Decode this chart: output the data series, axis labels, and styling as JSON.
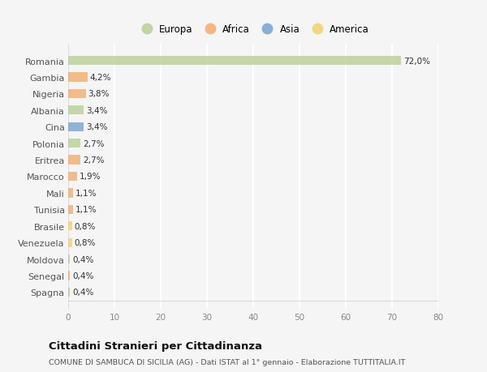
{
  "categories": [
    "Romania",
    "Gambia",
    "Nigeria",
    "Albania",
    "Cina",
    "Polonia",
    "Eritrea",
    "Marocco",
    "Mali",
    "Tunisia",
    "Brasile",
    "Venezuela",
    "Moldova",
    "Senegal",
    "Spagna"
  ],
  "values": [
    72.0,
    4.2,
    3.8,
    3.4,
    3.4,
    2.7,
    2.7,
    1.9,
    1.1,
    1.1,
    0.8,
    0.8,
    0.4,
    0.4,
    0.4
  ],
  "labels": [
    "72,0%",
    "4,2%",
    "3,8%",
    "3,4%",
    "3,4%",
    "2,7%",
    "2,7%",
    "1,9%",
    "1,1%",
    "1,1%",
    "0,8%",
    "0,8%",
    "0,4%",
    "0,4%",
    "0,4%"
  ],
  "colors": [
    "#b5cc8e",
    "#f0a868",
    "#f0a868",
    "#b5cc8e",
    "#6d9ecc",
    "#b5cc8e",
    "#f0a868",
    "#f0a868",
    "#f0a868",
    "#f0a868",
    "#f0d060",
    "#f0d060",
    "#b5cc8e",
    "#f0a868",
    "#b5cc8e"
  ],
  "legend_labels": [
    "Europa",
    "Africa",
    "Asia",
    "America"
  ],
  "legend_colors": [
    "#b5cc8e",
    "#f0a868",
    "#6d9ecc",
    "#f0d060"
  ],
  "title": "Cittadini Stranieri per Cittadinanza",
  "subtitle": "COMUNE DI SAMBUCA DI SICILIA (AG) - Dati ISTAT al 1° gennaio - Elaborazione TUTTITALIA.IT",
  "xlim": [
    0,
    80
  ],
  "xticks": [
    0,
    10,
    20,
    30,
    40,
    50,
    60,
    70,
    80
  ],
  "bg_color": "#f5f5f5",
  "grid_color": "#ffffff",
  "bar_height": 0.55
}
